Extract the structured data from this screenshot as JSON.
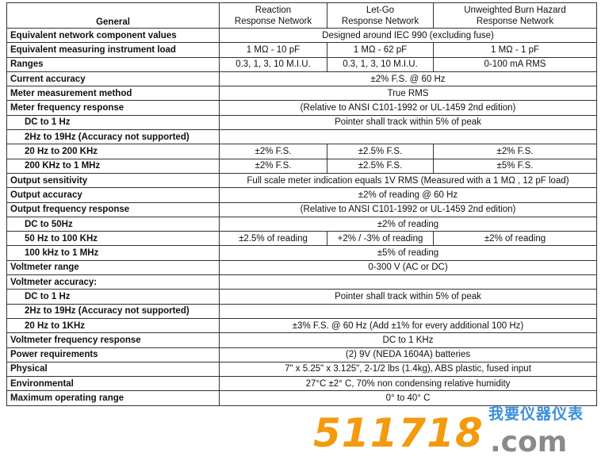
{
  "header": {
    "general": "General",
    "col1": [
      "Reaction",
      "Response Network"
    ],
    "col2": [
      "Let-Go",
      "Response Network"
    ],
    "col3": [
      "Unweighted Burn Hazard",
      "Response Network"
    ]
  },
  "rows": [
    {
      "label": "Equivalent network component values",
      "indent": false,
      "cells": [
        "Designed around IEC 990 (excluding fuse)"
      ]
    },
    {
      "label": "Equivalent measuring instrument load",
      "indent": false,
      "cells": [
        "1 MΩ - 10 pF",
        "1 MΩ - 62 pF",
        "1 MΩ - 1 pF"
      ]
    },
    {
      "label": "Ranges",
      "indent": false,
      "cells": [
        "0.3, 1, 3, 10 M.I.U.",
        "0.3, 1, 3, 10 M.I.U.",
        "0-100 mA RMS"
      ]
    },
    {
      "label": "Current accuracy",
      "indent": false,
      "cells": [
        "±2% F.S. @ 60 Hz"
      ]
    },
    {
      "label": "Meter measurement method",
      "indent": false,
      "cells": [
        "True RMS"
      ]
    },
    {
      "label": "Meter frequency response",
      "indent": false,
      "cells": [
        "(Relative to ANSI C101-1992 or UL-1459 2nd edition)"
      ]
    },
    {
      "label": "DC to 1 Hz",
      "indent": true,
      "cells": [
        "Pointer shall track within 5% of peak"
      ]
    },
    {
      "label": "2Hz to 19Hz (Accuracy not supported)",
      "indent": true,
      "cells": [
        ""
      ]
    },
    {
      "label": "20 Hz to 200 KHz",
      "indent": true,
      "cells": [
        "±2% F.S.",
        "±2.5% F.S.",
        "±2% F.S."
      ]
    },
    {
      "label": "200 KHz to 1 MHz",
      "indent": true,
      "cells": [
        "±2% F.S.",
        "±2.5% F.S.",
        "±5% F.S."
      ]
    },
    {
      "label": "Output sensitivity",
      "indent": false,
      "cells": [
        "Full scale meter indication equals 1V RMS (Measured with a 1 MΩ , 12 pF load)"
      ]
    },
    {
      "label": "Output accuracy",
      "indent": false,
      "cells": [
        "±2% of reading @ 60 Hz"
      ]
    },
    {
      "label": "Output frequency response",
      "indent": false,
      "cells": [
        "(Relative to ANSI C101-1992 or UL-1459 2nd edition)"
      ]
    },
    {
      "label": "DC to 50Hz",
      "indent": true,
      "cells": [
        "±2% of reading"
      ]
    },
    {
      "label": "50 Hz to 100 KHz",
      "indent": true,
      "cells": [
        "±2.5% of reading",
        "+2% / -3% of reading",
        "±2% of reading"
      ]
    },
    {
      "label": "100 kHz to 1 MHz",
      "indent": true,
      "cells": [
        "±5% of reading"
      ]
    },
    {
      "label": "Voltmeter range",
      "indent": false,
      "cells": [
        "0-300 V (AC or DC)"
      ]
    },
    {
      "label": "Voltmeter accuracy:",
      "indent": false,
      "cells": [
        ""
      ]
    },
    {
      "label": "DC to 1 Hz",
      "indent": true,
      "cells": [
        "Pointer shall track within 5% of peak"
      ]
    },
    {
      "label": "2Hz to 19Hz (Accuracy not supported)",
      "indent": true,
      "cells": [
        ""
      ]
    },
    {
      "label": "20 Hz to 1KHz",
      "indent": true,
      "cells": [
        "±3% F.S. @ 60 Hz (Add ±1% for every additional 100 Hz)"
      ]
    },
    {
      "label": "Voltmeter frequency response",
      "indent": false,
      "cells": [
        "DC to 1 KHz"
      ]
    },
    {
      "label": "Power requirements",
      "indent": false,
      "cells": [
        "(2) 9V (NEDA 1604A) batteries"
      ]
    },
    {
      "label": "Physical",
      "indent": false,
      "cells": [
        "7\" x 5.25\" x 3.125\", 2-1/2 lbs (1.4kg), ABS plastic, fused input"
      ]
    },
    {
      "label": "Environmental",
      "indent": false,
      "cells": [
        "27°C ±2° C, 70% non condensing relative humidity"
      ]
    },
    {
      "label": "Maximum operating range",
      "indent": false,
      "cells": [
        "0° to 40° C"
      ]
    }
  ],
  "watermark": {
    "number": "511718",
    "domain": ".com",
    "chinese": "我要仪器仪表",
    "number_color": "#f39a0e",
    "domain_color": "#8a8a8a",
    "chinese_color": "#3a8fdc"
  }
}
